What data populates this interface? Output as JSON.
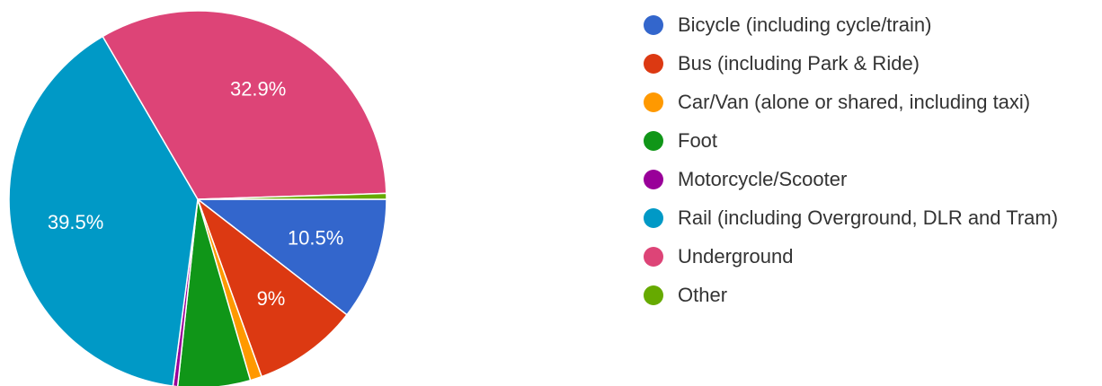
{
  "chart_data": {
    "type": "pie",
    "categories": [
      "Bicycle (including cycle/train)",
      "Bus (including Park & Ride)",
      "Car/Van (alone or shared, including taxi)",
      "Foot",
      "Motorcycle/Scooter",
      "Rail (including Overground, DLR and Tram)",
      "Underground",
      "Other"
    ],
    "values": [
      10.5,
      9,
      1.0,
      6.2,
      0.4,
      39.5,
      32.9,
      0.5
    ],
    "value_labels": [
      "10.5%",
      "9%",
      null,
      null,
      null,
      "39.5%",
      "32.9%",
      null
    ],
    "colors": [
      "#3366cc",
      "#dc3912",
      "#ff9900",
      "#109618",
      "#990099",
      "#0099c6",
      "#dd4477",
      "#66aa00"
    ]
  }
}
